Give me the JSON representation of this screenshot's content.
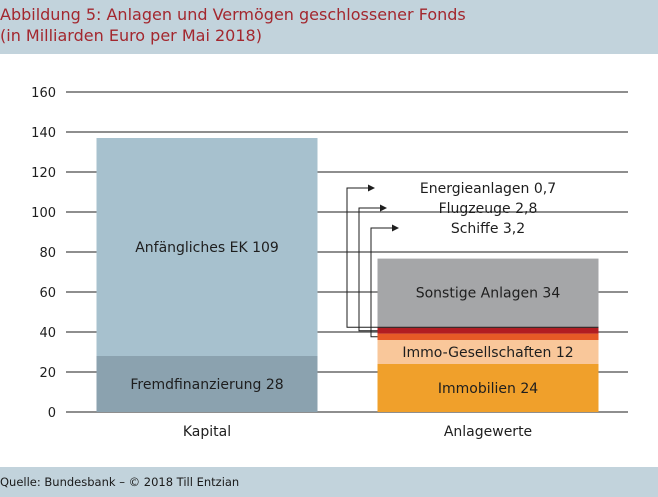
{
  "title_line1": "Abbildung 5: Anlagen und Vermögen geschlossener Fonds",
  "title_line2": "(in Milliarden Euro per Mai 2018)",
  "source": "Quelle: Bundesbank – © 2018 Till Entzian",
  "colors": {
    "title": "#a3272e",
    "frame": "#c2d3dc",
    "anfaengliches_ek": "#a7c1ce",
    "fremdfinanzierung": "#8ba2af",
    "sonstige_anlagen": "#a5a6a8",
    "energieanlagen": "#3b2a2a",
    "flugzeuge": "#b11d22",
    "schiffe": "#e65a26",
    "immo_gesellschaften": "#f9c79a",
    "immobilien": "#f0a02b"
  },
  "chart_data": {
    "type": "bar",
    "stacked": true,
    "categories": [
      "Kapital",
      "Anlagewerte"
    ],
    "ylim": [
      0,
      160
    ],
    "yticks": [
      "0",
      "20",
      "40",
      "60",
      "80",
      "100",
      "120",
      "140",
      "160"
    ],
    "grid": true,
    "series": [
      {
        "category": "Kapital",
        "segments": [
          {
            "label": "Fremdfinanzierung 28",
            "value": 28,
            "color_key": "fremdfinanzierung"
          },
          {
            "label": "Anfängliches EK 109",
            "value": 109,
            "color_key": "anfaengliches_ek"
          }
        ]
      },
      {
        "category": "Anlagewerte",
        "segments": [
          {
            "label": "Immobilien 24",
            "value": 24,
            "color_key": "immobilien"
          },
          {
            "label": "Immo-Gesellschaften 12",
            "value": 12,
            "color_key": "immo_gesellschaften"
          },
          {
            "label": "Schiffe 3,2",
            "value": 3.2,
            "color_key": "schiffe",
            "callout": true
          },
          {
            "label": "Flugzeuge 2,8",
            "value": 2.8,
            "color_key": "flugzeuge",
            "callout": true
          },
          {
            "label": "Energieanlagen 0,7",
            "value": 0.7,
            "color_key": "energieanlagen",
            "callout": true
          },
          {
            "label": "Sonstige Anlagen 34",
            "value": 34,
            "color_key": "sonstige_anlagen"
          }
        ]
      }
    ]
  }
}
